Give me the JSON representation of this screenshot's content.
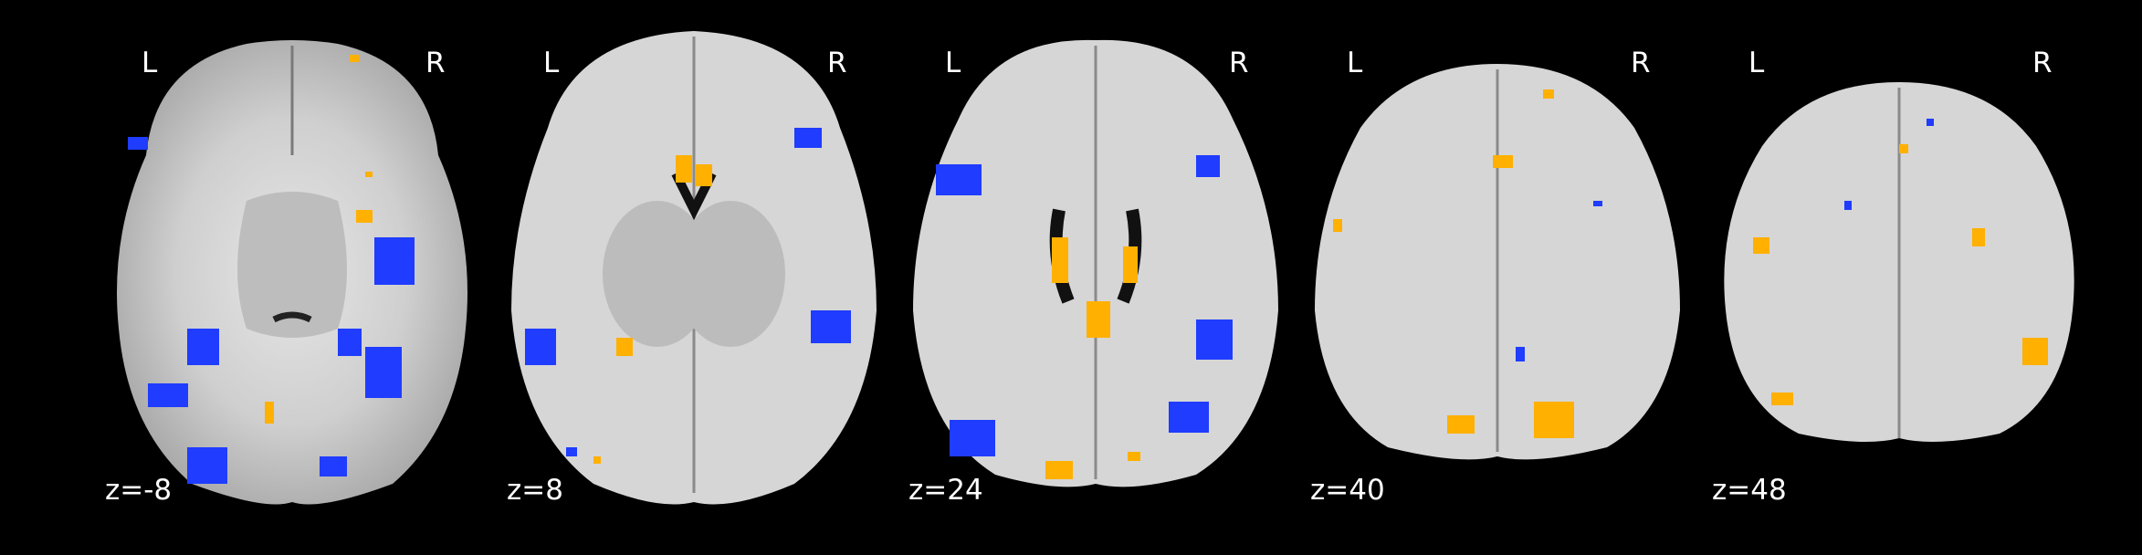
{
  "figure": {
    "slices": [
      {
        "left_label": "L",
        "right_label": "R",
        "z_label": "z=-8"
      },
      {
        "left_label": "L",
        "right_label": "R",
        "z_label": "z=8"
      },
      {
        "left_label": "L",
        "right_label": "R",
        "z_label": "z=24"
      },
      {
        "left_label": "L",
        "right_label": "R",
        "z_label": "z=40"
      },
      {
        "left_label": "L",
        "right_label": "R",
        "z_label": "z=48"
      }
    ],
    "colors": {
      "background": "#000000",
      "brain_tissue": "#d9d9d9",
      "white_matter": "#f2f2f2",
      "negative_blobs": "#1f3cff",
      "positive_blobs": "#ffb000",
      "label_text": "#ffffff"
    }
  }
}
